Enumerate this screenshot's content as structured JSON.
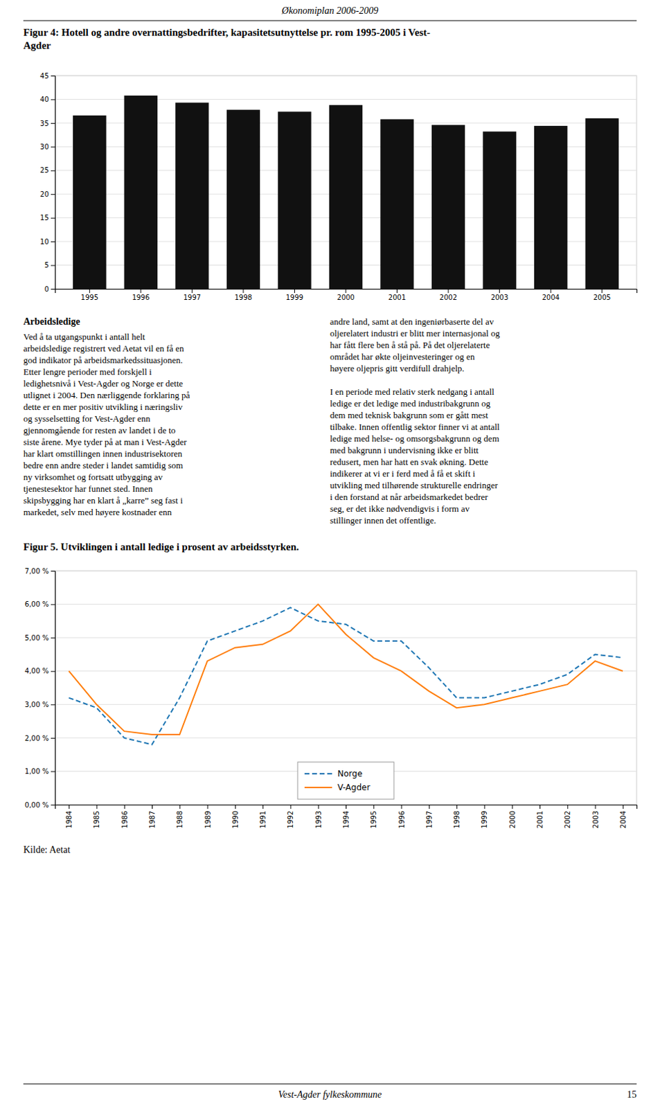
{
  "page": {
    "header": "Økonomiplan 2006-2009",
    "column_heading": "Arbeidsledige",
    "columns": [
      "Ved å ta utgangspunkt i antall helt\narbeidsledige registrert ved Aetat vil en få en\ngod indikator på arbeidsmarkedssituasjonen.\nEtter lengre perioder med forskjell i\nledighetsnivå i Vest-Agder og Norge er dette\nutlignet i 2004. Den nærliggende forklaring på\ndette er en mer positiv utvikling i næringsliv\nog sysselsetting for Vest-Agder enn\ngjennomgående for resten av landet i de to\nsiste årene. Mye tyder på at man i Vest-Agder\nhar klart omstillingen innen industrisektoren\nbedre enn andre steder i landet samtidig som\nny virksomhet og fortsatt utbygging av\ntjenestesektor har funnet sted. Innen\nskipsbygging har en klart å „karre” seg fast i\nmarkedet, selv med høyere kostnader enn",
      "andre land, samt at den ingeniørbaserte del av\noljerelatert industri er blitt mer internasjonal og\nhar fått flere ben å stå på. På det oljerelaterte\nområdet har økte oljeinvesteringer og en\nhøyere oljepris gitt verdifull drahjelp.\n\nI en periode med relativ sterk nedgang i antall\nledige er det ledige med industribakgrunn og\ndem med teknisk bakgrunn som er gått mest\ntilbake. Innen offentlig sektor finner vi at antall\nledige med helse- og omsorgsbakgrunn og dem\nmed bakgrunn i undervisning ikke er blitt\nredusert, men har hatt en svak økning. Dette\nindikerer at vi er i ferd med å få et skift i\nutvikling med tilhørende strukturelle endringer\ni den forstand at når arbeidsmarkedet bedrer\nseg, er det ikke nødvendigvis i form av\nstillinger innen det offentlige."
    ],
    "source": "Kilde: Aetat",
    "footer_center": "Vest-Agder fylkeskommune",
    "page_number": "15"
  },
  "chart_data": [
    {
      "type": "bar",
      "title": "Figur 4: Hotell og andre overnattingsbedrifter, kapasitetsutnyttelse pr. rom 1995-2005 i Vest-\nAgder",
      "categories": [
        "1995",
        "1996",
        "1997",
        "1998",
        "1999",
        "2000",
        "2001",
        "2002",
        "2003",
        "2004",
        "2005"
      ],
      "values": [
        36.6,
        40.8,
        39.3,
        37.8,
        37.4,
        38.8,
        35.8,
        34.6,
        33.2,
        34.4,
        36.0
      ],
      "color": "#111111",
      "ylim": [
        0,
        45
      ],
      "yticks": [
        0,
        5,
        10,
        15,
        20,
        25,
        30,
        35,
        40,
        45
      ],
      "grid": true
    },
    {
      "type": "line",
      "title": "Figur 5. Utviklingen i antall ledige i prosent av arbeidsstyrken.",
      "categories": [
        "1984",
        "1985",
        "1986",
        "1987",
        "1988",
        "1989",
        "1990",
        "1991",
        "1992",
        "1993",
        "1994",
        "1995",
        "1996",
        "1997",
        "1998",
        "1999",
        "2000",
        "2001",
        "2002",
        "2003",
        "2004"
      ],
      "series": [
        {
          "name": "Norge",
          "line_style": "dashed",
          "values": [
            3.2,
            2.9,
            2.0,
            1.8,
            3.2,
            4.9,
            5.2,
            5.5,
            5.9,
            5.5,
            5.4,
            4.9,
            4.9,
            4.1,
            3.2,
            3.2,
            3.4,
            3.6,
            3.9,
            4.5,
            4.4
          ]
        },
        {
          "name": "V-Agder",
          "line_style": "solid",
          "values": [
            4.0,
            3.0,
            2.2,
            2.1,
            2.1,
            4.3,
            4.7,
            4.8,
            5.2,
            6.0,
            5.1,
            4.4,
            4.0,
            3.4,
            2.9,
            3.0,
            3.2,
            3.4,
            3.6,
            4.3,
            4.0
          ]
        }
      ],
      "ylim": [
        0,
        7
      ],
      "yticks": [
        {
          "value": 0.0,
          "label": "0,00 %"
        },
        {
          "value": 1.0,
          "label": "1,00 %"
        },
        {
          "value": 2.0,
          "label": "2,00 %"
        },
        {
          "value": 3.0,
          "label": "3,00 %"
        },
        {
          "value": 4.0,
          "label": "4,00 %"
        },
        {
          "value": 5.0,
          "label": "5,00 %"
        },
        {
          "value": 6.0,
          "label": "6,00 %"
        },
        {
          "value": 7.0,
          "label": "7,00 %"
        }
      ],
      "grid": true,
      "legend": "lower center"
    }
  ]
}
